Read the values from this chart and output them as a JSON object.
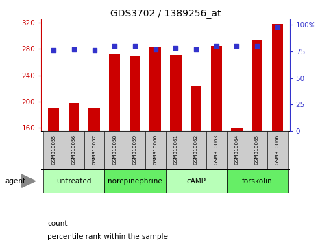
{
  "title": "GDS3702 / 1389256_at",
  "samples": [
    "GSM310055",
    "GSM310056",
    "GSM310057",
    "GSM310058",
    "GSM310059",
    "GSM310060",
    "GSM310061",
    "GSM310062",
    "GSM310063",
    "GSM310064",
    "GSM310065",
    "GSM310066"
  ],
  "counts": [
    191,
    198,
    191,
    273,
    269,
    284,
    271,
    224,
    285,
    160,
    294,
    318
  ],
  "percentiles": [
    76,
    77,
    76,
    80,
    80,
    77,
    78,
    77,
    80,
    80,
    80,
    98
  ],
  "groups": [
    {
      "label": "untreated",
      "start": 0,
      "end": 3,
      "color": "#b8ffb8"
    },
    {
      "label": "norepinephrine",
      "start": 3,
      "end": 6,
      "color": "#66ee66"
    },
    {
      "label": "cAMP",
      "start": 6,
      "end": 9,
      "color": "#b8ffb8"
    },
    {
      "label": "forskolin",
      "start": 9,
      "end": 12,
      "color": "#66ee66"
    }
  ],
  "ylim_left": [
    155,
    325
  ],
  "yticks_left": [
    160,
    200,
    240,
    280,
    320
  ],
  "ylim_right": [
    0,
    105
  ],
  "yticks_right": [
    0,
    25,
    50,
    75,
    100
  ],
  "bar_color": "#cc0000",
  "dot_color": "#3333cc",
  "bar_width": 0.55,
  "agent_label": "agent",
  "legend_count_label": "count",
  "legend_percentile_label": "percentile rank within the sample",
  "tick_label_color_left": "#cc0000",
  "tick_label_color_right": "#3333cc",
  "sample_label_bg": "#cccccc",
  "figsize": [
    4.83,
    3.54
  ],
  "dpi": 100
}
